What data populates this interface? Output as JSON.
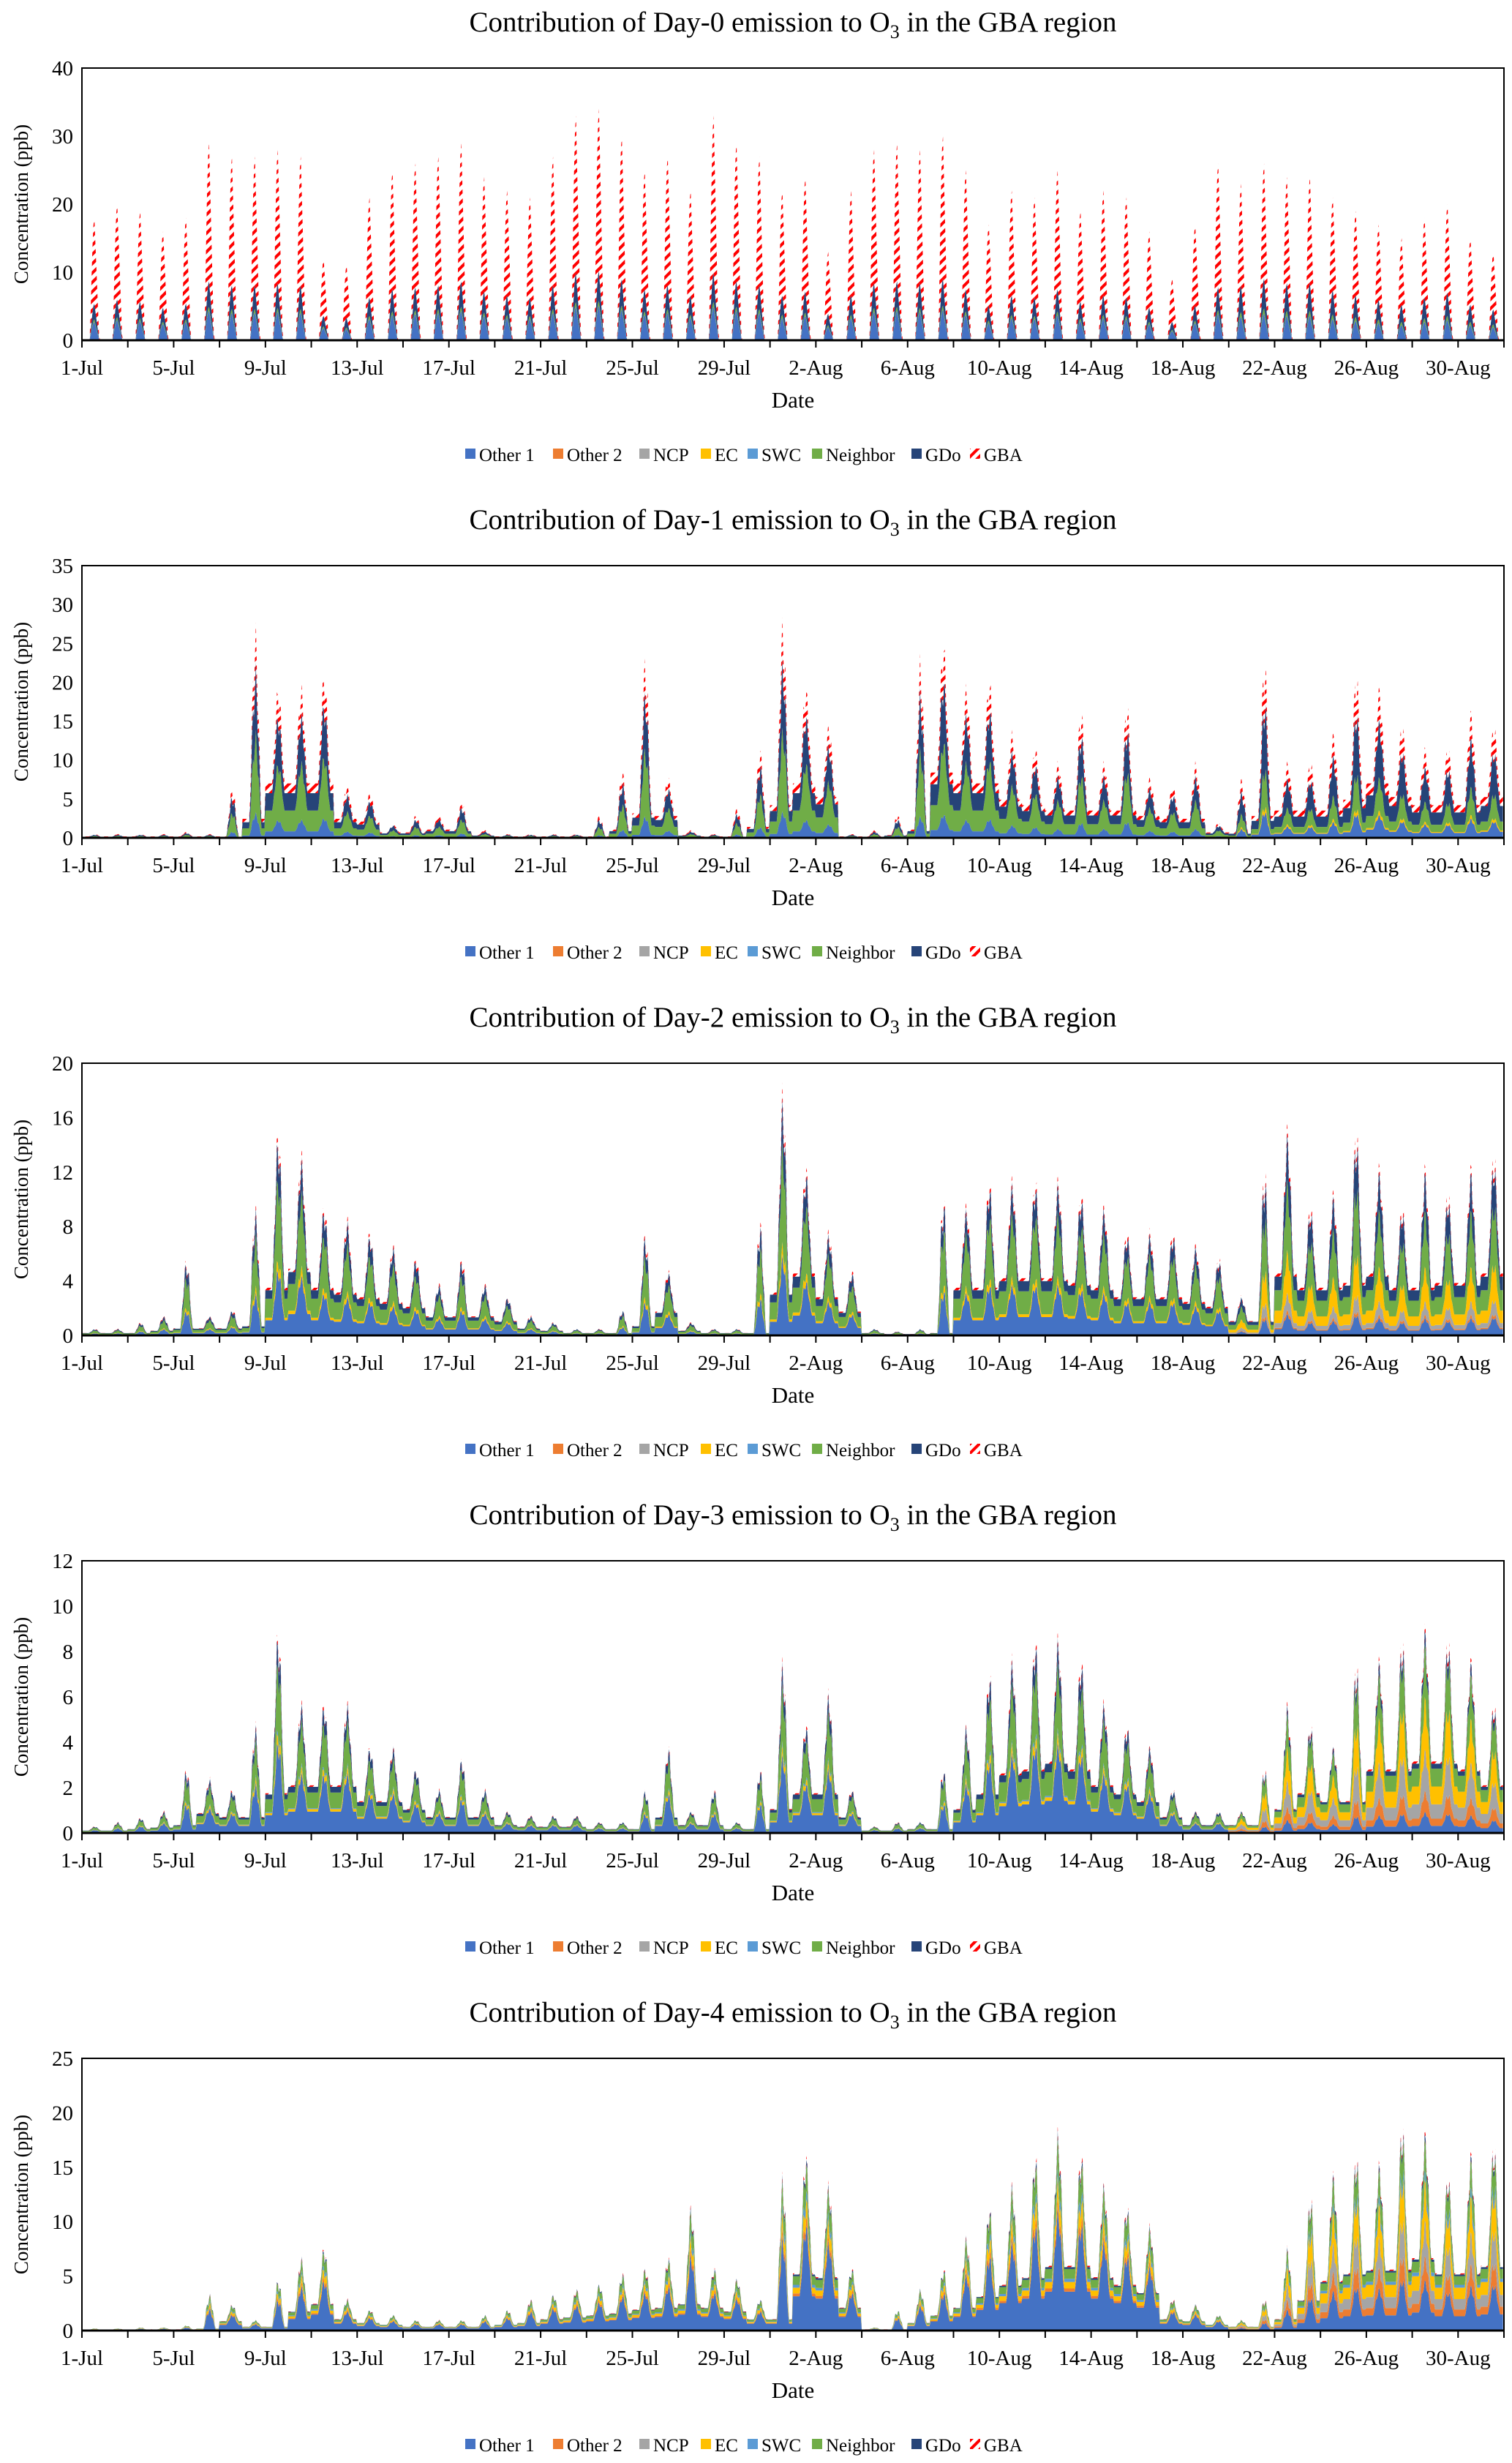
{
  "chart_data": {
    "type": "area",
    "subtype": "stacked",
    "resolution_note": "daily peak totals; hourly diurnal cycle",
    "xlabel": "Date",
    "ylabel": "Concentration (ppb)",
    "x_tick_labels": [
      "1-Jul",
      "5-Jul",
      "9-Jul",
      "13-Jul",
      "17-Jul",
      "21-Jul",
      "25-Jul",
      "29-Jul",
      "2-Aug",
      "6-Aug",
      "10-Aug",
      "14-Aug",
      "18-Aug",
      "22-Aug",
      "26-Aug",
      "30-Aug"
    ],
    "days": 62,
    "legend": [
      {
        "key": "other1",
        "label": "Other 1",
        "color": "#4472C4"
      },
      {
        "key": "other2",
        "label": "Other 2",
        "color": "#ED7D31"
      },
      {
        "key": "ncp",
        "label": "NCP",
        "color": "#A5A5A5"
      },
      {
        "key": "ec",
        "label": "EC",
        "color": "#FFC000"
      },
      {
        "key": "swc",
        "label": "SWC",
        "color": "#5B9BD5"
      },
      {
        "key": "neighbor",
        "label": "Neighbor",
        "color": "#70AD47"
      },
      {
        "key": "gdo",
        "label": "GDo",
        "color": "#264478"
      },
      {
        "key": "gba",
        "label": "GBA",
        "color": "#FF0000",
        "pattern": "hatch"
      }
    ],
    "legend_position": "bottom",
    "charts": [
      {
        "title_pre": "Contribution of Day-0 emission to O",
        "title_sub": "3",
        "title_post": " in the GBA region",
        "ylim": [
          0,
          40
        ],
        "yticks": [
          0,
          10,
          20,
          30,
          40
        ],
        "diurnal": "daytime-only",
        "total_peak": [
          18,
          20,
          19,
          16,
          18,
          29,
          27,
          27,
          28,
          27,
          12,
          11,
          21,
          25,
          26,
          27,
          29,
          24,
          22,
          21,
          27,
          33,
          34,
          30,
          25,
          27,
          22,
          33,
          29,
          27,
          22,
          24,
          13,
          22,
          28,
          29,
          28,
          30,
          25,
          17,
          22,
          21,
          25,
          19,
          22,
          21,
          16,
          9,
          17,
          26,
          23,
          26,
          24,
          24,
          21,
          19,
          17,
          15,
          18,
          20,
          15,
          13
        ],
        "shares": {
          "other1": 0.15,
          "other2": 0,
          "ncp": 0,
          "ec": 0,
          "swc": 0,
          "neighbor": 0.02,
          "gdo": 0.13,
          "gba": 0.7
        },
        "shares_late": {
          "other1": 0.15,
          "other2": 0,
          "ncp": 0,
          "ec": 0,
          "swc": 0,
          "neighbor": 0.03,
          "gdo": 0.17,
          "gba": 0.65
        }
      },
      {
        "title_pre": "Contribution of Day-1 emission to O",
        "title_sub": "3",
        "title_post": " in the GBA region",
        "ylim": [
          0,
          35
        ],
        "yticks": [
          0,
          5,
          10,
          15,
          20,
          25,
          30,
          35
        ],
        "diurnal": "continuous",
        "total_peak": [
          0.5,
          0.5,
          0.5,
          0.5,
          0.8,
          0.5,
          7,
          28,
          20,
          20,
          22,
          7,
          6,
          2,
          3,
          3,
          5,
          1,
          0.5,
          0.5,
          0.5,
          0.5,
          3,
          9,
          24,
          8,
          1,
          0.5,
          4,
          12,
          29,
          20,
          15,
          0.5,
          1,
          3,
          24,
          26,
          20,
          21,
          14,
          12,
          10,
          17,
          10,
          18,
          8,
          7,
          10,
          2,
          8,
          24,
          10,
          10,
          14,
          22,
          20,
          15,
          12,
          12,
          17,
          15
        ],
        "shares": {
          "other1": 0.12,
          "other2": 0,
          "ncp": 0,
          "ec": 0,
          "swc": 0,
          "neighbor": 0.38,
          "gdo": 0.32,
          "gba": 0.18
        },
        "shares_late": {
          "other1": 0.15,
          "other2": 0,
          "ncp": 0,
          "ec": 0.03,
          "swc": 0,
          "neighbor": 0.22,
          "gdo": 0.38,
          "gba": 0.22
        }
      },
      {
        "title_pre": "Contribution of Day-2 emission to O",
        "title_sub": "3",
        "title_post": " in the GBA region",
        "ylim": [
          0,
          20
        ],
        "yticks": [
          0,
          4,
          8,
          12,
          16,
          20
        ],
        "diurnal": "continuous",
        "total_peak": [
          0.5,
          0.5,
          1,
          1.5,
          6,
          1.5,
          2,
          10,
          16,
          14,
          10,
          9,
          8,
          7,
          6,
          4,
          6,
          4,
          3,
          1.5,
          1,
          0.5,
          0.5,
          2,
          8,
          5,
          1,
          0.5,
          0.5,
          9,
          19,
          13,
          8,
          5,
          0.5,
          0.3,
          0.5,
          11,
          10,
          12,
          12,
          12,
          12,
          11,
          10,
          8,
          8,
          8,
          7,
          6,
          3,
          13,
          16,
          10,
          11,
          16,
          13,
          10,
          13,
          11,
          13,
          14
        ],
        "shares": {
          "other1": 0.32,
          "other2": 0,
          "ncp": 0,
          "ec": 0.05,
          "swc": 0,
          "neighbor": 0.4,
          "gdo": 0.18,
          "gba": 0.05
        },
        "shares_late": {
          "other1": 0.1,
          "other2": 0.02,
          "ncp": 0.08,
          "ec": 0.2,
          "swc": 0,
          "neighbor": 0.33,
          "gdo": 0.22,
          "gba": 0.05
        }
      },
      {
        "title_pre": "Contribution of Day-3 emission to O",
        "title_sub": "3",
        "title_post": " in the GBA region",
        "ylim": [
          0,
          12
        ],
        "yticks": [
          0,
          2,
          4,
          6,
          8,
          10,
          12
        ],
        "diurnal": "continuous",
        "total_peak": [
          0.3,
          0.5,
          0.7,
          1,
          3,
          2.5,
          2,
          5,
          9.5,
          6,
          6,
          6,
          4,
          4,
          3,
          2,
          3.5,
          2,
          1,
          0.8,
          0.8,
          0.8,
          0.5,
          0.5,
          2,
          4,
          1,
          2,
          0.5,
          3,
          8,
          5,
          6.5,
          2,
          0.3,
          0.5,
          0.5,
          3,
          5,
          7.5,
          8,
          9,
          9,
          8,
          6,
          5,
          4,
          2,
          1,
          1,
          1,
          3,
          6,
          5,
          4,
          8,
          8,
          9,
          9.5,
          9,
          8,
          6
        ],
        "shares": {
          "other1": 0.45,
          "other2": 0,
          "ncp": 0,
          "ec": 0.05,
          "swc": 0.02,
          "neighbor": 0.33,
          "gdo": 0.12,
          "gba": 0.03
        },
        "shares_late": {
          "other1": 0.1,
          "other2": 0.1,
          "ncp": 0.2,
          "ec": 0.25,
          "swc": 0,
          "neighbor": 0.25,
          "gdo": 0.07,
          "gba": 0.03
        }
      },
      {
        "title_pre": "Contribution of Day-4 emission to O",
        "title_sub": "3",
        "title_post": " in the GBA region",
        "ylim": [
          0,
          25
        ],
        "yticks": [
          0,
          5,
          10,
          15,
          20,
          25
        ],
        "diurnal": "continuous",
        "total_peak": [
          0.2,
          0.2,
          0.3,
          0.3,
          0.5,
          3.5,
          2.5,
          1,
          5,
          7,
          8,
          3,
          2,
          1.5,
          1,
          1,
          1,
          1.5,
          2,
          3,
          3.5,
          4,
          4.5,
          5.5,
          6,
          7,
          12,
          6,
          5,
          3,
          15,
          17,
          14,
          6,
          0.3,
          2,
          4,
          6,
          9,
          12,
          14,
          17,
          19,
          17,
          14,
          12,
          10,
          3,
          2.5,
          1.5,
          1,
          3,
          8,
          13,
          15,
          17,
          16,
          20,
          19,
          15,
          17,
          18
        ],
        "shares": {
          "other1": 0.6,
          "other2": 0.05,
          "ncp": 0,
          "ec": 0.1,
          "swc": 0.05,
          "neighbor": 0.15,
          "gdo": 0.03,
          "gba": 0.02
        },
        "shares_late": {
          "other1": 0.25,
          "other2": 0.12,
          "ncp": 0.18,
          "ec": 0.2,
          "swc": 0.05,
          "neighbor": 0.15,
          "gdo": 0.03,
          "gba": 0.02
        }
      }
    ]
  }
}
